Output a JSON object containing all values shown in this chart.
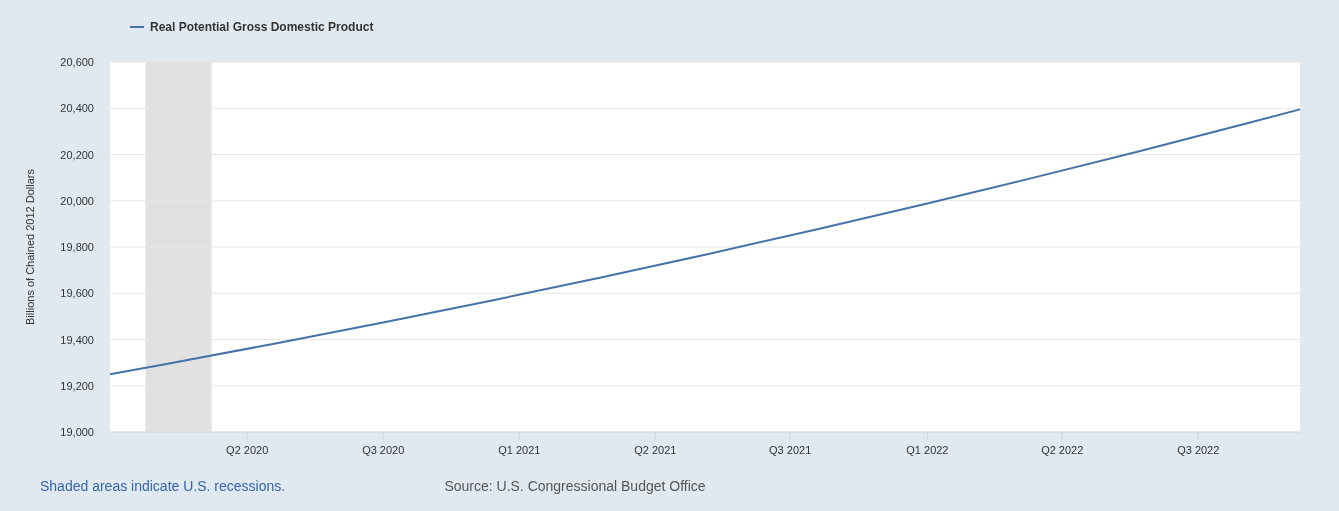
{
  "chart_data": {
    "type": "line",
    "ylabel": "Billions of Chained 2012 Dollars",
    "x": [
      "2020-02-11",
      "2020-04-01",
      "2020-07-01",
      "2020-10-01",
      "2021-01-01",
      "2021-04-01",
      "2021-07-01",
      "2021-10-01",
      "2022-01-01",
      "2022-04-01",
      "2022-07-01",
      "2022-10-01",
      "2022-11-13"
    ],
    "series": [
      {
        "name": "Real Potential Gross Domestic Product",
        "color": "#4572a7",
        "values": [
          19250,
          19296,
          19384,
          19476,
          19571,
          19668,
          19770,
          19877,
          19987,
          20099,
          20215,
          20337,
          20395
        ]
      }
    ],
    "xlim": [
      "2020-02-11",
      "2022-11-13"
    ],
    "xticks": [
      {
        "value": "2020-06-06",
        "label": "Q2 2020"
      },
      {
        "value": "2020-09-29",
        "label": "Q3 2020"
      },
      {
        "value": "2021-01-22",
        "label": "Q1 2021"
      },
      {
        "value": "2021-05-17",
        "label": "Q2 2021"
      },
      {
        "value": "2021-09-08",
        "label": "Q3 2021"
      },
      {
        "value": "2022-01-02",
        "label": "Q1 2022"
      },
      {
        "value": "2022-04-26",
        "label": "Q2 2022"
      },
      {
        "value": "2022-08-19",
        "label": "Q3 2022"
      }
    ],
    "ylim": [
      19000,
      20600
    ],
    "yticks": [
      {
        "value": 19000,
        "label": "19,000"
      },
      {
        "value": 19200,
        "label": "19,200"
      },
      {
        "value": 19400,
        "label": "19,400"
      },
      {
        "value": 19600,
        "label": "19,600"
      },
      {
        "value": 19800,
        "label": "19,800"
      },
      {
        "value": 20000,
        "label": "20,000"
      },
      {
        "value": 20200,
        "label": "20,200"
      },
      {
        "value": 20400,
        "label": "20,400"
      },
      {
        "value": 20600,
        "label": "20,600"
      }
    ],
    "bands": [
      {
        "axis": "x",
        "from": "2020-03-12",
        "to": "2020-05-07",
        "color": "#e1e1e1"
      }
    ],
    "grid": "y",
    "legend": "top left",
    "line_style": "solid",
    "marker": "none",
    "annotations": [
      "Shaded areas indicate U.S. recessions.",
      "Source: U.S. Congressional Budget Office"
    ]
  }
}
